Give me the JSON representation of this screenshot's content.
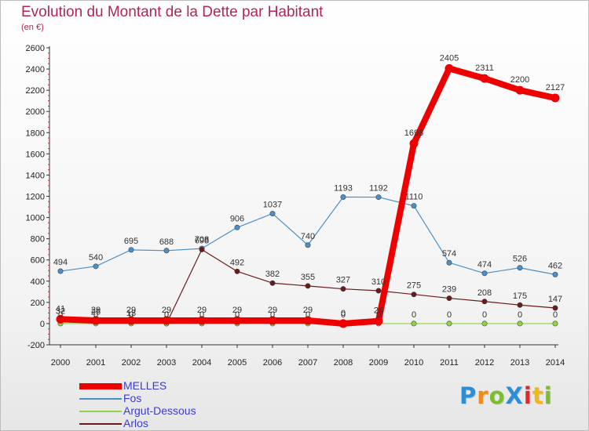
{
  "title": "Evolution du Montant de la Dette par Habitant",
  "subtitle": "(en €)",
  "logo": {
    "text": "ProXiti",
    "letters": [
      "P",
      "r",
      "o",
      "X",
      "i",
      "t",
      "i"
    ],
    "colors": [
      "#2a8fd6",
      "#f08a16",
      "#7cbd2e",
      "#2a8fd6",
      "#e2262a",
      "#f0b816",
      "#7cbd2e"
    ]
  },
  "chart_data": {
    "type": "line",
    "x": [
      2000,
      2001,
      2002,
      2003,
      2004,
      2005,
      2006,
      2007,
      2008,
      2009,
      2010,
      2011,
      2012,
      2013,
      2014
    ],
    "ylim": [
      -200,
      2600
    ],
    "yticks": [
      -200,
      0,
      200,
      400,
      600,
      800,
      1000,
      1200,
      1400,
      1600,
      1800,
      2000,
      2200,
      2400,
      2600
    ],
    "grid": false,
    "legend_position": "bottom-left",
    "series": [
      {
        "name": "Fos",
        "color": "#4a8fc8",
        "values": [
          494,
          540,
          695,
          688,
          708,
          906,
          1037,
          740,
          1193,
          1192,
          1110,
          574,
          474,
          526,
          462
        ],
        "labels": [
          "494",
          "540",
          "695",
          "688",
          "708",
          "906",
          "1037",
          "740",
          "1193",
          "1192",
          "1110",
          "574",
          "474",
          "526",
          "462"
        ]
      },
      {
        "name": "Arlos",
        "color": "#6b1a1a",
        "values": [
          32,
          25,
          13,
          0,
          698,
          492,
          382,
          355,
          327,
          310,
          275,
          239,
          208,
          175,
          147
        ],
        "labels": [
          "32",
          "25",
          "13",
          "0",
          "698",
          "492",
          "382",
          "355",
          "327",
          "310",
          "275",
          "239",
          "208",
          "175",
          "147"
        ]
      },
      {
        "name": "Argut-Dessous",
        "color": "#8fd44a",
        "values": [
          0,
          0,
          0,
          0,
          0,
          0,
          0,
          0,
          0,
          0,
          0,
          0,
          0,
          0,
          0
        ],
        "labels": [
          "0",
          "0",
          "0",
          "0",
          "0",
          "0",
          "0",
          "0",
          "0",
          "0",
          "0",
          "0",
          "0",
          "0",
          "0"
        ]
      },
      {
        "name": "MELLES",
        "color": "#ee0000",
        "values": [
          41,
          29,
          29,
          29,
          29,
          29,
          29,
          29,
          0,
          24,
          1698,
          2405,
          2311,
          2200,
          2127
        ],
        "labels": [
          "41",
          "29",
          "29",
          "29",
          "29",
          "29",
          "29",
          "29",
          "0",
          "24",
          "1698",
          "2405",
          "2311",
          "2200",
          "2127"
        ]
      }
    ]
  },
  "legend": [
    {
      "label": "MELLES",
      "color": "#ee0000",
      "thickness": 8
    },
    {
      "label": "Fos",
      "color": "#4a8fc8",
      "thickness": 2
    },
    {
      "label": "Argut-Dessous",
      "color": "#8fd44a",
      "thickness": 2
    },
    {
      "label": "Arlos",
      "color": "#6b1a1a",
      "thickness": 2
    }
  ]
}
